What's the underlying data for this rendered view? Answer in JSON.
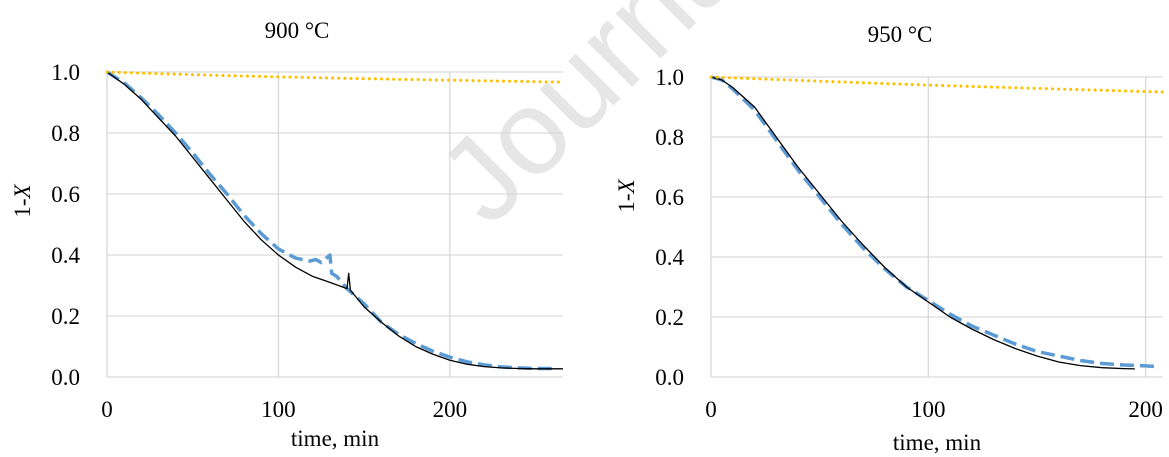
{
  "watermark": "Journal",
  "colors": {
    "measured": "#5B9BD5",
    "model": "#000000",
    "reference": "#FFC000",
    "grid": "#D9D9D9",
    "watermark": "#E6E6E6"
  },
  "chart_data": [
    {
      "type": "line",
      "title": "900 °C",
      "xlabel": "time, min",
      "ylabel_prefix": "1-",
      "ylabel_var": "X",
      "xlim": [
        0,
        266
      ],
      "ylim": [
        0,
        1
      ],
      "xticks": [
        0,
        100,
        200
      ],
      "yticks": [
        0.0,
        0.2,
        0.4,
        0.6,
        0.8,
        1.0
      ],
      "ytick_labels": [
        "0.0",
        "0.2",
        "0.4",
        "0.6",
        "0.8",
        "1.0"
      ],
      "grid": true,
      "legend": "none",
      "series": [
        {
          "style": "dashed",
          "color": "#5B9BD5",
          "x": [
            0,
            10,
            20,
            30,
            40,
            50,
            60,
            70,
            80,
            90,
            100,
            110,
            118,
            122,
            125,
            128,
            130,
            131,
            134,
            140,
            150,
            160,
            170,
            180,
            190,
            200,
            210,
            220,
            230,
            240,
            250,
            260
          ],
          "y": [
            1.0,
            0.965,
            0.915,
            0.86,
            0.8,
            0.735,
            0.665,
            0.6,
            0.53,
            0.47,
            0.42,
            0.39,
            0.38,
            0.385,
            0.375,
            0.39,
            0.4,
            0.34,
            0.33,
            0.29,
            0.24,
            0.18,
            0.14,
            0.11,
            0.085,
            0.065,
            0.05,
            0.04,
            0.033,
            0.03,
            0.028,
            0.028
          ]
        },
        {
          "style": "solid",
          "color": "#000000",
          "x": [
            0,
            10,
            20,
            30,
            40,
            50,
            60,
            70,
            80,
            90,
            100,
            110,
            120,
            130,
            140,
            141,
            142,
            150,
            160,
            170,
            180,
            190,
            200,
            210,
            220,
            230,
            240,
            250,
            266
          ],
          "y": [
            1.0,
            0.96,
            0.91,
            0.85,
            0.79,
            0.72,
            0.65,
            0.58,
            0.51,
            0.45,
            0.4,
            0.36,
            0.33,
            0.31,
            0.29,
            0.34,
            0.285,
            0.23,
            0.18,
            0.135,
            0.1,
            0.075,
            0.055,
            0.042,
            0.034,
            0.03,
            0.028,
            0.027,
            0.027
          ]
        },
        {
          "style": "dotted",
          "color": "#FFC000",
          "x": [
            0,
            50,
            100,
            150,
            200,
            266
          ],
          "y": [
            1.0,
            0.991,
            0.984,
            0.978,
            0.973,
            0.967
          ]
        }
      ]
    },
    {
      "type": "line",
      "title": "950 °C",
      "xlabel": "time, min",
      "ylabel_prefix": "1-",
      "ylabel_var": "X",
      "xlim": [
        0,
        208
      ],
      "ylim": [
        0,
        1
      ],
      "xticks": [
        0,
        100,
        200
      ],
      "yticks": [
        0.0,
        0.2,
        0.4,
        0.6,
        0.8,
        1.0
      ],
      "ytick_labels": [
        "0.0",
        "0.2",
        "0.4",
        "0.6",
        "0.8",
        "1.0"
      ],
      "grid": true,
      "legend": "none",
      "series": [
        {
          "style": "dashed",
          "color": "#5B9BD5",
          "x": [
            0,
            5,
            10,
            20,
            30,
            40,
            50,
            60,
            70,
            80,
            90,
            100,
            110,
            120,
            130,
            140,
            150,
            160,
            170,
            180,
            190,
            200,
            205
          ],
          "y": [
            1.0,
            0.99,
            0.96,
            0.89,
            0.79,
            0.69,
            0.6,
            0.51,
            0.43,
            0.36,
            0.3,
            0.255,
            0.21,
            0.17,
            0.14,
            0.11,
            0.085,
            0.07,
            0.055,
            0.045,
            0.04,
            0.037,
            0.035
          ]
        },
        {
          "style": "solid",
          "color": "#000000",
          "x": [
            0,
            5,
            10,
            20,
            30,
            40,
            50,
            60,
            70,
            80,
            90,
            100,
            110,
            120,
            130,
            140,
            150,
            160,
            170,
            180,
            190,
            195
          ],
          "y": [
            1.0,
            0.99,
            0.965,
            0.9,
            0.8,
            0.7,
            0.61,
            0.52,
            0.44,
            0.365,
            0.3,
            0.25,
            0.2,
            0.16,
            0.125,
            0.095,
            0.07,
            0.05,
            0.038,
            0.031,
            0.028,
            0.027
          ]
        },
        {
          "style": "dotted",
          "color": "#FFC000",
          "x": [
            0,
            50,
            100,
            150,
            208
          ],
          "y": [
            1.0,
            0.986,
            0.973,
            0.962,
            0.95
          ]
        }
      ]
    }
  ]
}
